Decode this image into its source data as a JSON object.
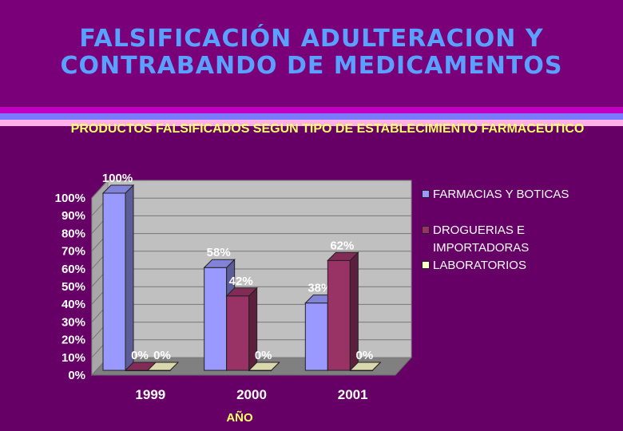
{
  "slide": {
    "title": "FALSIFICACIÓN ADULTERACION Y CONTRABANDO DE MEDICAMENTOS"
  },
  "colors": {
    "background": "#7a007a",
    "panel": "#660066",
    "title": "#5aa0ff",
    "subtitle": "#ffff66"
  },
  "chart_data": {
    "type": "bar",
    "title": "PRODUCTOS FALSIFICADOS SEGUN TIPO DE ESTABLECIMIENTO FARMACEUTICO",
    "xlabel": "AÑO",
    "ylabel": "",
    "categories": [
      "1999",
      "2000",
      "2001"
    ],
    "ylim": [
      0,
      100
    ],
    "yticks": [
      "0%",
      "10%",
      "20%",
      "30%",
      "40%",
      "50%",
      "60%",
      "70%",
      "80%",
      "90%",
      "100%"
    ],
    "legend_position": "right",
    "series": [
      {
        "name": "FARMACIAS Y BOTICAS",
        "values": [
          100,
          58,
          38
        ],
        "labels": [
          "100%",
          "58%",
          "38%"
        ],
        "color": "#9999ff"
      },
      {
        "name": "DROGUERIAS E IMPORTADORAS",
        "values": [
          0,
          42,
          62
        ],
        "labels": [
          "0%",
          "42%",
          "62%"
        ],
        "color": "#993366"
      },
      {
        "name": "LABORATORIOS",
        "values": [
          0,
          0,
          0
        ],
        "labels": [
          "0%",
          "0%",
          "0%"
        ],
        "color": "#ffffcc"
      }
    ]
  }
}
